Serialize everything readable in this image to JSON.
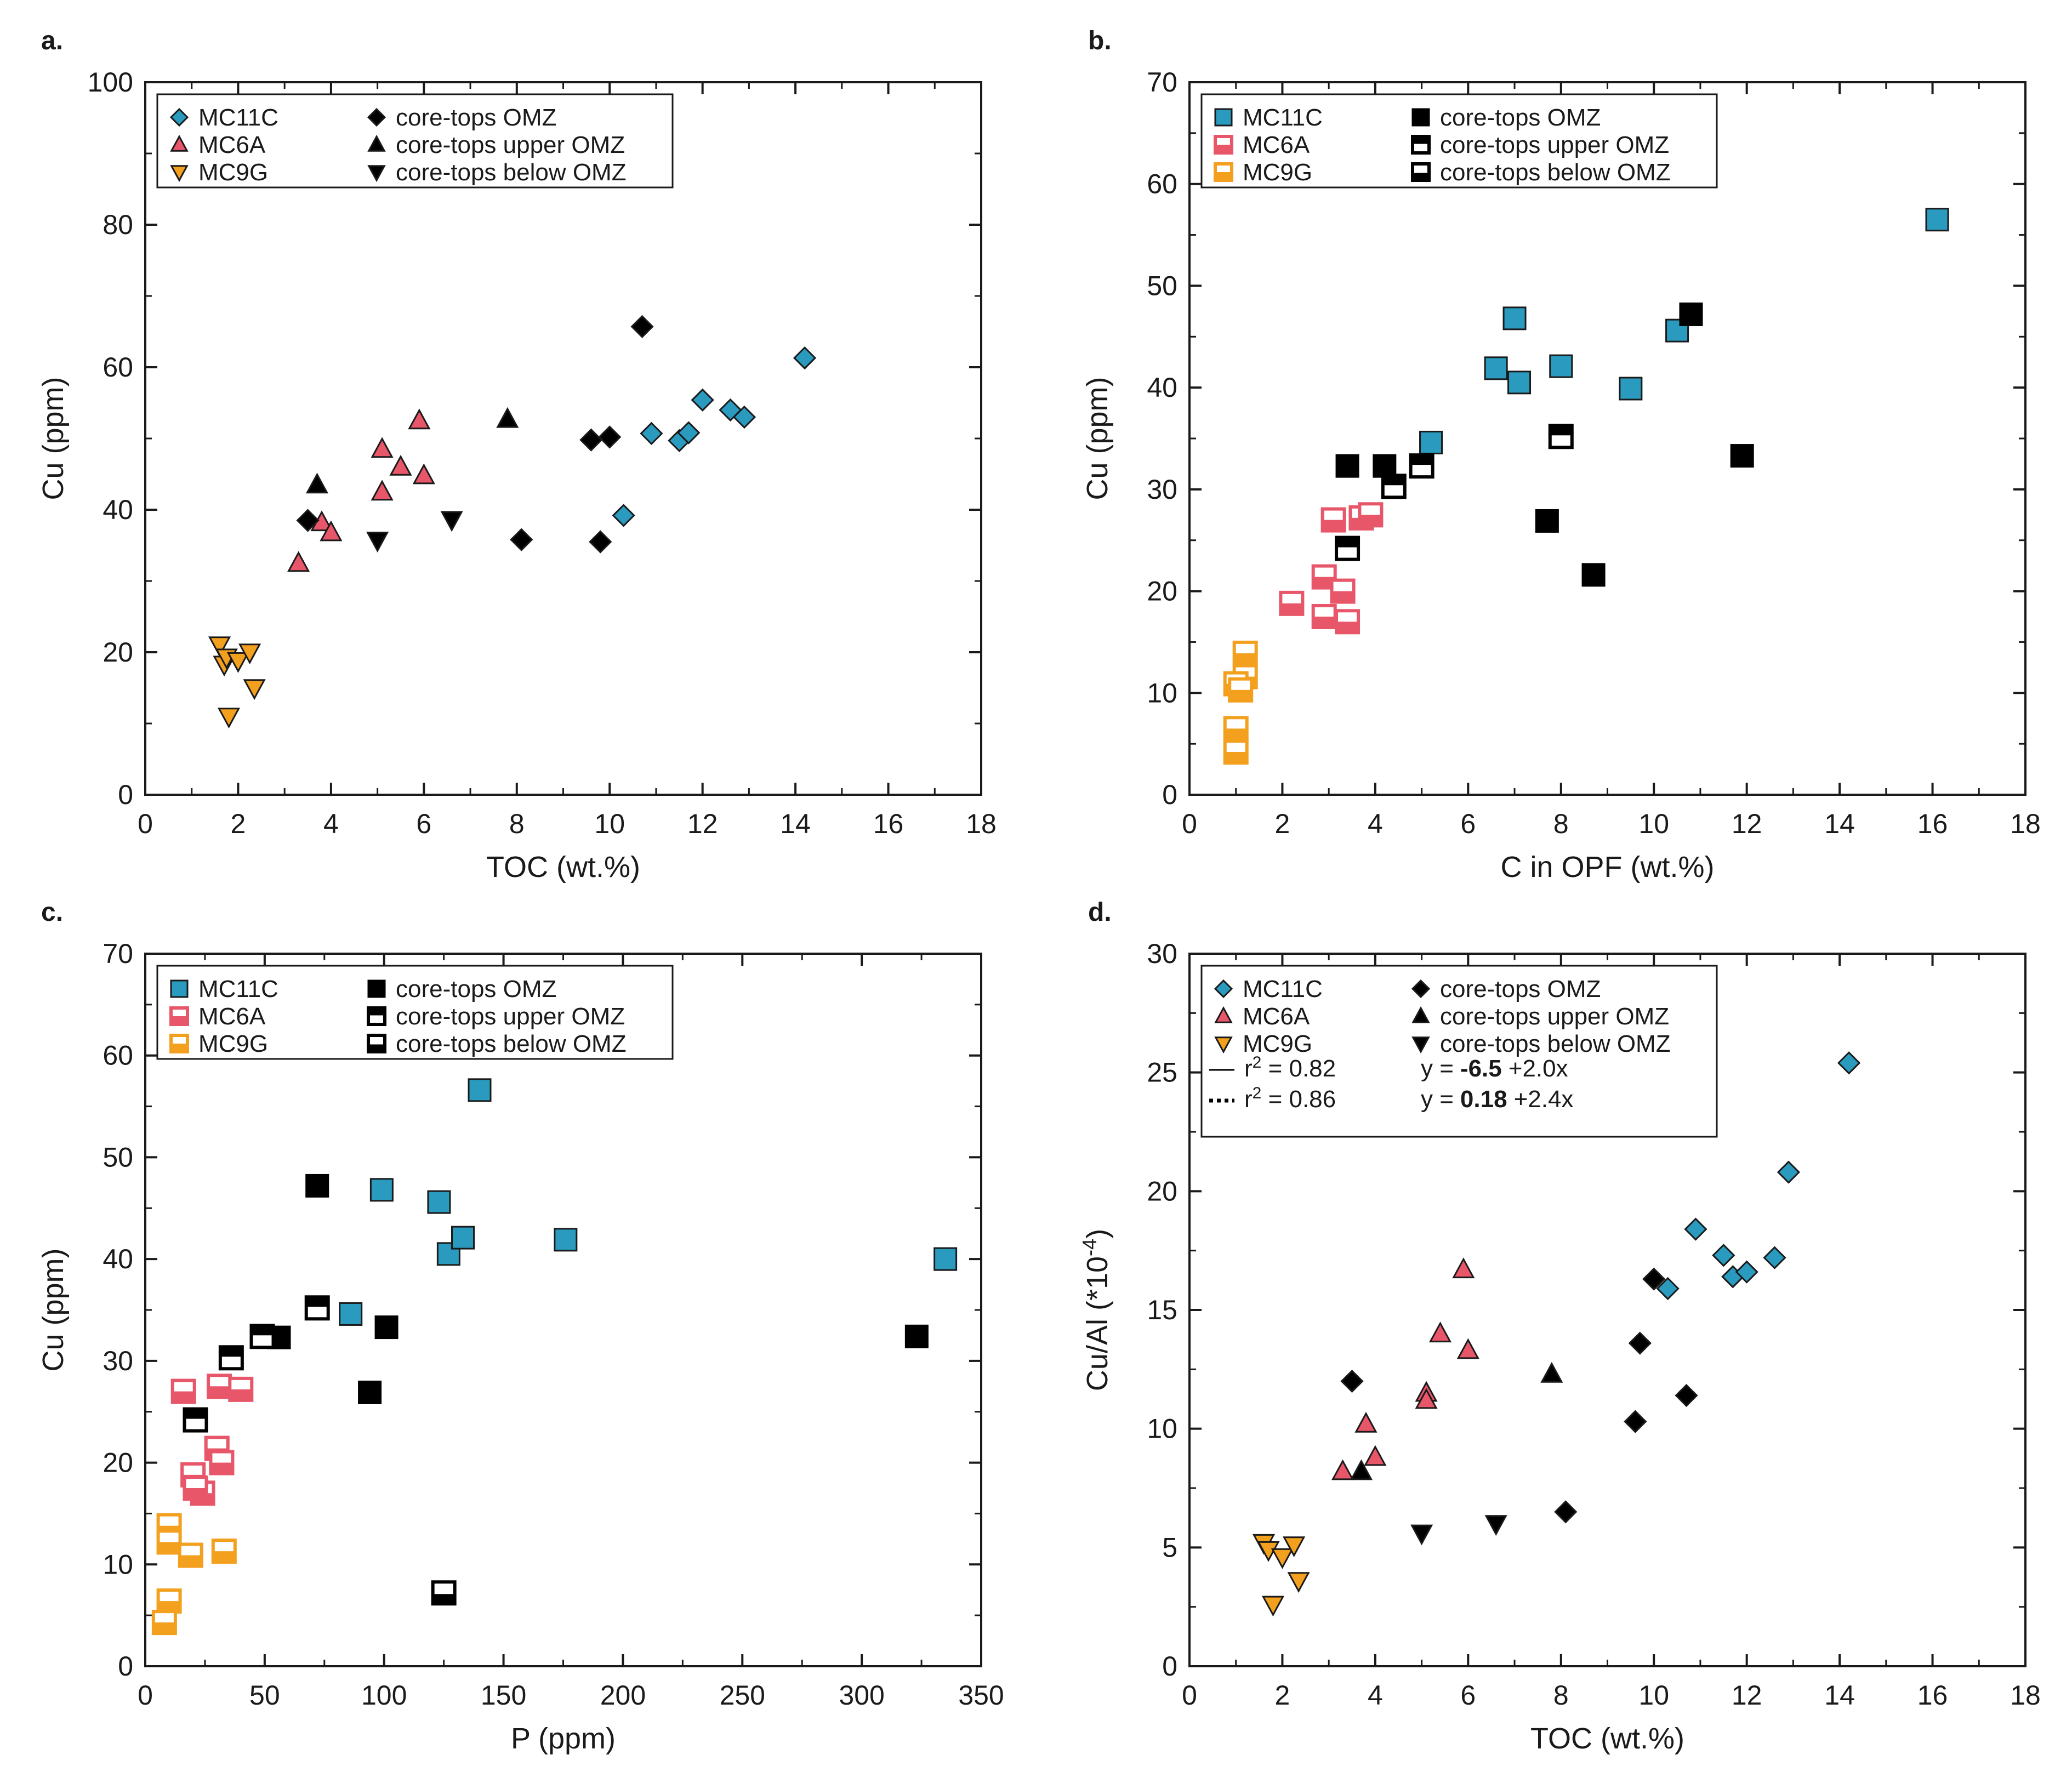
{
  "colors": {
    "MC11C": "#2a9bbf",
    "MC6A": "#e8566a",
    "MC9G": "#f2a01e",
    "core": "#000000",
    "axis": "#1a1a1a"
  },
  "chart_data": [
    {
      "type": "scatter",
      "panel_label": "a.",
      "marker_style": "filled",
      "xlabel": "TOC (wt.%)",
      "ylabel": "Cu (ppm)",
      "ylabel_sup": "",
      "ylabel_tail": "",
      "xlim": [
        0,
        18
      ],
      "ylim": [
        0,
        100
      ],
      "xticks": [
        0,
        2,
        4,
        6,
        8,
        10,
        12,
        14,
        16,
        18
      ],
      "yticks": [
        0,
        20,
        40,
        60,
        80,
        100
      ],
      "legend": {
        "position": "top-left",
        "entries": [
          {
            "label": "MC11C",
            "marker": "diamond",
            "color": "MC11C"
          },
          {
            "label": "core-tops OMZ",
            "marker": "diamond",
            "color": "core"
          },
          {
            "label": "MC6A",
            "marker": "triangle-up",
            "color": "MC6A"
          },
          {
            "label": "core-tops upper OMZ",
            "marker": "triangle-up",
            "color": "core"
          },
          {
            "label": "MC9G",
            "marker": "triangle-down",
            "color": "MC9G"
          },
          {
            "label": "core-tops below OMZ",
            "marker": "triangle-down",
            "color": "core"
          }
        ],
        "fits": []
      },
      "series": [
        {
          "name": "MC11C",
          "marker": "diamond",
          "color": "MC11C",
          "x": [
            14.2,
            10.3,
            10.9,
            11.5,
            11.7,
            12.0,
            12.6,
            12.9
          ],
          "y": [
            61.3,
            39.2,
            50.7,
            49.7,
            50.8,
            55.4,
            54.0,
            53.0
          ]
        },
        {
          "name": "MC6A",
          "marker": "triangle-up",
          "color": "MC6A",
          "x": [
            3.3,
            3.8,
            4.0,
            5.1,
            5.1,
            5.5,
            5.9,
            6.0
          ],
          "y": [
            32.5,
            38.2,
            36.8,
            48.5,
            42.5,
            46.0,
            52.5,
            44.8
          ]
        },
        {
          "name": "MC9G",
          "marker": "triangle-down",
          "color": "MC9G",
          "x": [
            1.6,
            1.7,
            1.75,
            2.0,
            2.25,
            2.35,
            1.8
          ],
          "y": [
            21.0,
            18.3,
            19.3,
            18.8,
            20.0,
            15.0,
            11.0
          ]
        },
        {
          "name": "core-tops OMZ",
          "marker": "diamond",
          "color": "core",
          "x": [
            3.5,
            8.1,
            9.6,
            9.8,
            10.0,
            10.7
          ],
          "y": [
            38.5,
            35.8,
            49.8,
            35.5,
            50.2,
            65.7
          ]
        },
        {
          "name": "core-tops upper OMZ",
          "marker": "triangle-up",
          "color": "core",
          "x": [
            3.7,
            7.8
          ],
          "y": [
            43.5,
            52.7
          ]
        },
        {
          "name": "core-tops below OMZ",
          "marker": "triangle-down",
          "color": "core",
          "x": [
            5.0,
            6.6
          ],
          "y": [
            35.7,
            38.6
          ]
        }
      ]
    },
    {
      "type": "scatter",
      "panel_label": "b.",
      "marker_style": "squares",
      "xlabel": "C in OPF (wt.%)",
      "ylabel": "Cu (ppm)",
      "ylabel_sup": "",
      "ylabel_tail": "",
      "xlim": [
        0,
        18
      ],
      "ylim": [
        0,
        70
      ],
      "xticks": [
        0,
        2,
        4,
        6,
        8,
        10,
        12,
        14,
        16,
        18
      ],
      "yticks": [
        0,
        10,
        20,
        30,
        40,
        50,
        60,
        70
      ],
      "legend": {
        "position": "top-left",
        "entries": [
          {
            "label": "MC11C",
            "marker": "square",
            "color": "MC11C"
          },
          {
            "label": "core-tops OMZ",
            "marker": "square",
            "color": "core"
          },
          {
            "label": "MC6A",
            "marker": "square-open",
            "color": "MC6A"
          },
          {
            "label": "core-tops upper OMZ",
            "marker": "square-half",
            "color": "core"
          },
          {
            "label": "MC9G",
            "marker": "square-open",
            "color": "MC9G"
          },
          {
            "label": "core-tops below OMZ",
            "marker": "square-lower-half",
            "color": "core"
          }
        ],
        "fits": []
      },
      "series": [
        {
          "name": "MC11C",
          "marker": "square",
          "color": "MC11C",
          "x": [
            16.1,
            7.0,
            6.6,
            7.1,
            8.0,
            10.5,
            9.5,
            5.2
          ],
          "y": [
            56.5,
            46.8,
            41.9,
            40.5,
            42.1,
            45.6,
            39.9,
            34.6
          ]
        },
        {
          "name": "MC6A",
          "marker": "square-open",
          "color": "MC6A",
          "x": [
            3.1,
            3.7,
            3.9,
            2.9,
            3.3,
            2.2,
            2.9,
            3.4
          ],
          "y": [
            27.0,
            27.2,
            27.5,
            21.4,
            20.0,
            18.8,
            17.5,
            17.0
          ]
        },
        {
          "name": "MC9G",
          "marker": "square-open",
          "color": "MC9G",
          "x": [
            1.2,
            1.2,
            1.0,
            1.1,
            1.0,
            1.0
          ],
          "y": [
            13.9,
            11.6,
            10.9,
            10.3,
            6.5,
            4.2
          ]
        },
        {
          "name": "core-tops OMZ",
          "marker": "square",
          "color": "core",
          "x": [
            10.8,
            3.4,
            4.2,
            11.9,
            7.7,
            8.7
          ],
          "y": [
            47.2,
            32.3,
            32.3,
            33.3,
            26.9,
            21.6
          ]
        },
        {
          "name": "core-tops upper OMZ",
          "marker": "square-half",
          "color": "core",
          "x": [
            8.0,
            5.0,
            4.4,
            3.4
          ],
          "y": [
            35.2,
            32.3,
            30.3,
            24.2
          ]
        },
        {
          "name": "core-tops below OMZ",
          "marker": "square-lower-half",
          "color": "core",
          "x": [],
          "y": []
        }
      ]
    },
    {
      "type": "scatter",
      "panel_label": "c.",
      "marker_style": "squares",
      "xlabel": "P (ppm)",
      "ylabel": "Cu (ppm)",
      "ylabel_sup": "",
      "ylabel_tail": "",
      "xlim": [
        0,
        350
      ],
      "ylim": [
        0,
        70
      ],
      "xticks": [
        0,
        50,
        100,
        150,
        200,
        250,
        300,
        350
      ],
      "yticks": [
        0,
        10,
        20,
        30,
        40,
        50,
        60,
        70
      ],
      "legend": {
        "position": "top-left",
        "entries": [
          {
            "label": "MC11C",
            "marker": "square",
            "color": "MC11C"
          },
          {
            "label": "core-tops OMZ",
            "marker": "square",
            "color": "core"
          },
          {
            "label": "MC6A",
            "marker": "square-open",
            "color": "MC6A"
          },
          {
            "label": "core-tops upper OMZ",
            "marker": "square-half",
            "color": "core"
          },
          {
            "label": "MC9G",
            "marker": "square-open",
            "color": "MC9G"
          },
          {
            "label": "core-tops below OMZ",
            "marker": "square-lower-half",
            "color": "core"
          }
        ],
        "fits": []
      },
      "series": [
        {
          "name": "MC11C",
          "marker": "square",
          "color": "MC11C",
          "x": [
            140,
            99,
            123,
            127,
            133,
            176,
            335,
            86
          ],
          "y": [
            56.6,
            46.8,
            45.6,
            40.5,
            42.1,
            41.9,
            40.0,
            34.6
          ]
        },
        {
          "name": "MC6A",
          "marker": "square-open",
          "color": "MC6A",
          "x": [
            16,
            31,
            40,
            30,
            32,
            20,
            24,
            21
          ],
          "y": [
            27.0,
            27.5,
            27.2,
            21.4,
            20.0,
            18.8,
            17.0,
            17.5
          ]
        },
        {
          "name": "MC9G",
          "marker": "square-open",
          "color": "MC9G",
          "x": [
            10,
            10,
            19,
            33,
            10,
            8
          ],
          "y": [
            13.8,
            12.2,
            10.9,
            11.3,
            6.4,
            4.3
          ]
        },
        {
          "name": "core-tops OMZ",
          "marker": "square",
          "color": "core",
          "x": [
            72,
            56,
            101,
            94,
            323
          ],
          "y": [
            47.2,
            32.3,
            33.3,
            26.9,
            32.4
          ]
        },
        {
          "name": "core-tops upper OMZ",
          "marker": "square-half",
          "color": "core",
          "x": [
            72,
            49,
            36,
            21
          ],
          "y": [
            35.2,
            32.4,
            30.3,
            24.2
          ]
        },
        {
          "name": "core-tops below OMZ",
          "marker": "square-lower-half",
          "color": "core",
          "x": [
            125
          ],
          "y": [
            7.2
          ]
        }
      ]
    },
    {
      "type": "scatter",
      "panel_label": "d.",
      "marker_style": "filled",
      "xlabel": "TOC (wt.%)",
      "ylabel": "Cu/Al (*10",
      "ylabel_sup": "-4",
      "ylabel_tail": ")",
      "xlim": [
        0,
        18
      ],
      "ylim": [
        0,
        30
      ],
      "xticks": [
        0,
        2,
        4,
        6,
        8,
        10,
        12,
        14,
        16,
        18
      ],
      "yticks": [
        0,
        5,
        10,
        15,
        20,
        25,
        30
      ],
      "legend": {
        "position": "top-left",
        "entries": [
          {
            "label": "MC11C",
            "marker": "diamond",
            "color": "MC11C"
          },
          {
            "label": "core-tops OMZ",
            "marker": "diamond",
            "color": "core"
          },
          {
            "label": "MC6A",
            "marker": "triangle-up",
            "color": "MC6A"
          },
          {
            "label": "core-tops upper OMZ",
            "marker": "triangle-up",
            "color": "core"
          },
          {
            "label": "MC9G",
            "marker": "triangle-down",
            "color": "MC9G"
          },
          {
            "label": "core-tops below OMZ",
            "marker": "triangle-down",
            "color": "core"
          }
        ],
        "fits": [
          {
            "line": "solid",
            "r2": "= 0.82",
            "eq_prefix": "y =",
            "intercept": "-6.5",
            "slope": "+2.0x"
          },
          {
            "line": "dotted",
            "r2": "= 0.86",
            "eq_prefix": "y =",
            "intercept": "0.18",
            "slope": "+2.4x"
          }
        ]
      },
      "series": [
        {
          "name": "MC11C",
          "marker": "diamond",
          "color": "MC11C",
          "x": [
            14.2,
            12.9,
            10.9,
            11.5,
            11.7,
            12.0,
            12.6,
            10.3
          ],
          "y": [
            25.4,
            20.8,
            18.4,
            17.3,
            16.4,
            16.6,
            17.2,
            15.9
          ]
        },
        {
          "name": "MC6A",
          "marker": "triangle-up",
          "color": "MC6A",
          "x": [
            5.9,
            5.4,
            6.0,
            5.1,
            5.1,
            3.8,
            4.0,
            3.3
          ],
          "y": [
            16.7,
            14.0,
            13.3,
            11.5,
            11.2,
            10.2,
            8.8,
            8.2
          ]
        },
        {
          "name": "MC9G",
          "marker": "triangle-down",
          "color": "MC9G",
          "x": [
            1.6,
            1.7,
            2.0,
            2.25,
            2.35,
            1.8
          ],
          "y": [
            5.2,
            4.9,
            4.6,
            5.1,
            3.6,
            2.6
          ]
        },
        {
          "name": "core-tops OMZ",
          "marker": "diamond",
          "color": "core",
          "x": [
            3.5,
            9.7,
            10.0,
            10.7,
            9.6,
            8.1
          ],
          "y": [
            12.0,
            13.6,
            16.3,
            11.4,
            10.3,
            6.5
          ]
        },
        {
          "name": "core-tops upper OMZ",
          "marker": "triangle-up",
          "color": "core",
          "x": [
            7.8,
            3.7
          ],
          "y": [
            12.3,
            8.2
          ]
        },
        {
          "name": "core-tops below OMZ",
          "marker": "triangle-down",
          "color": "core",
          "x": [
            5.0,
            6.6
          ],
          "y": [
            5.6,
            6.0
          ]
        }
      ]
    }
  ]
}
